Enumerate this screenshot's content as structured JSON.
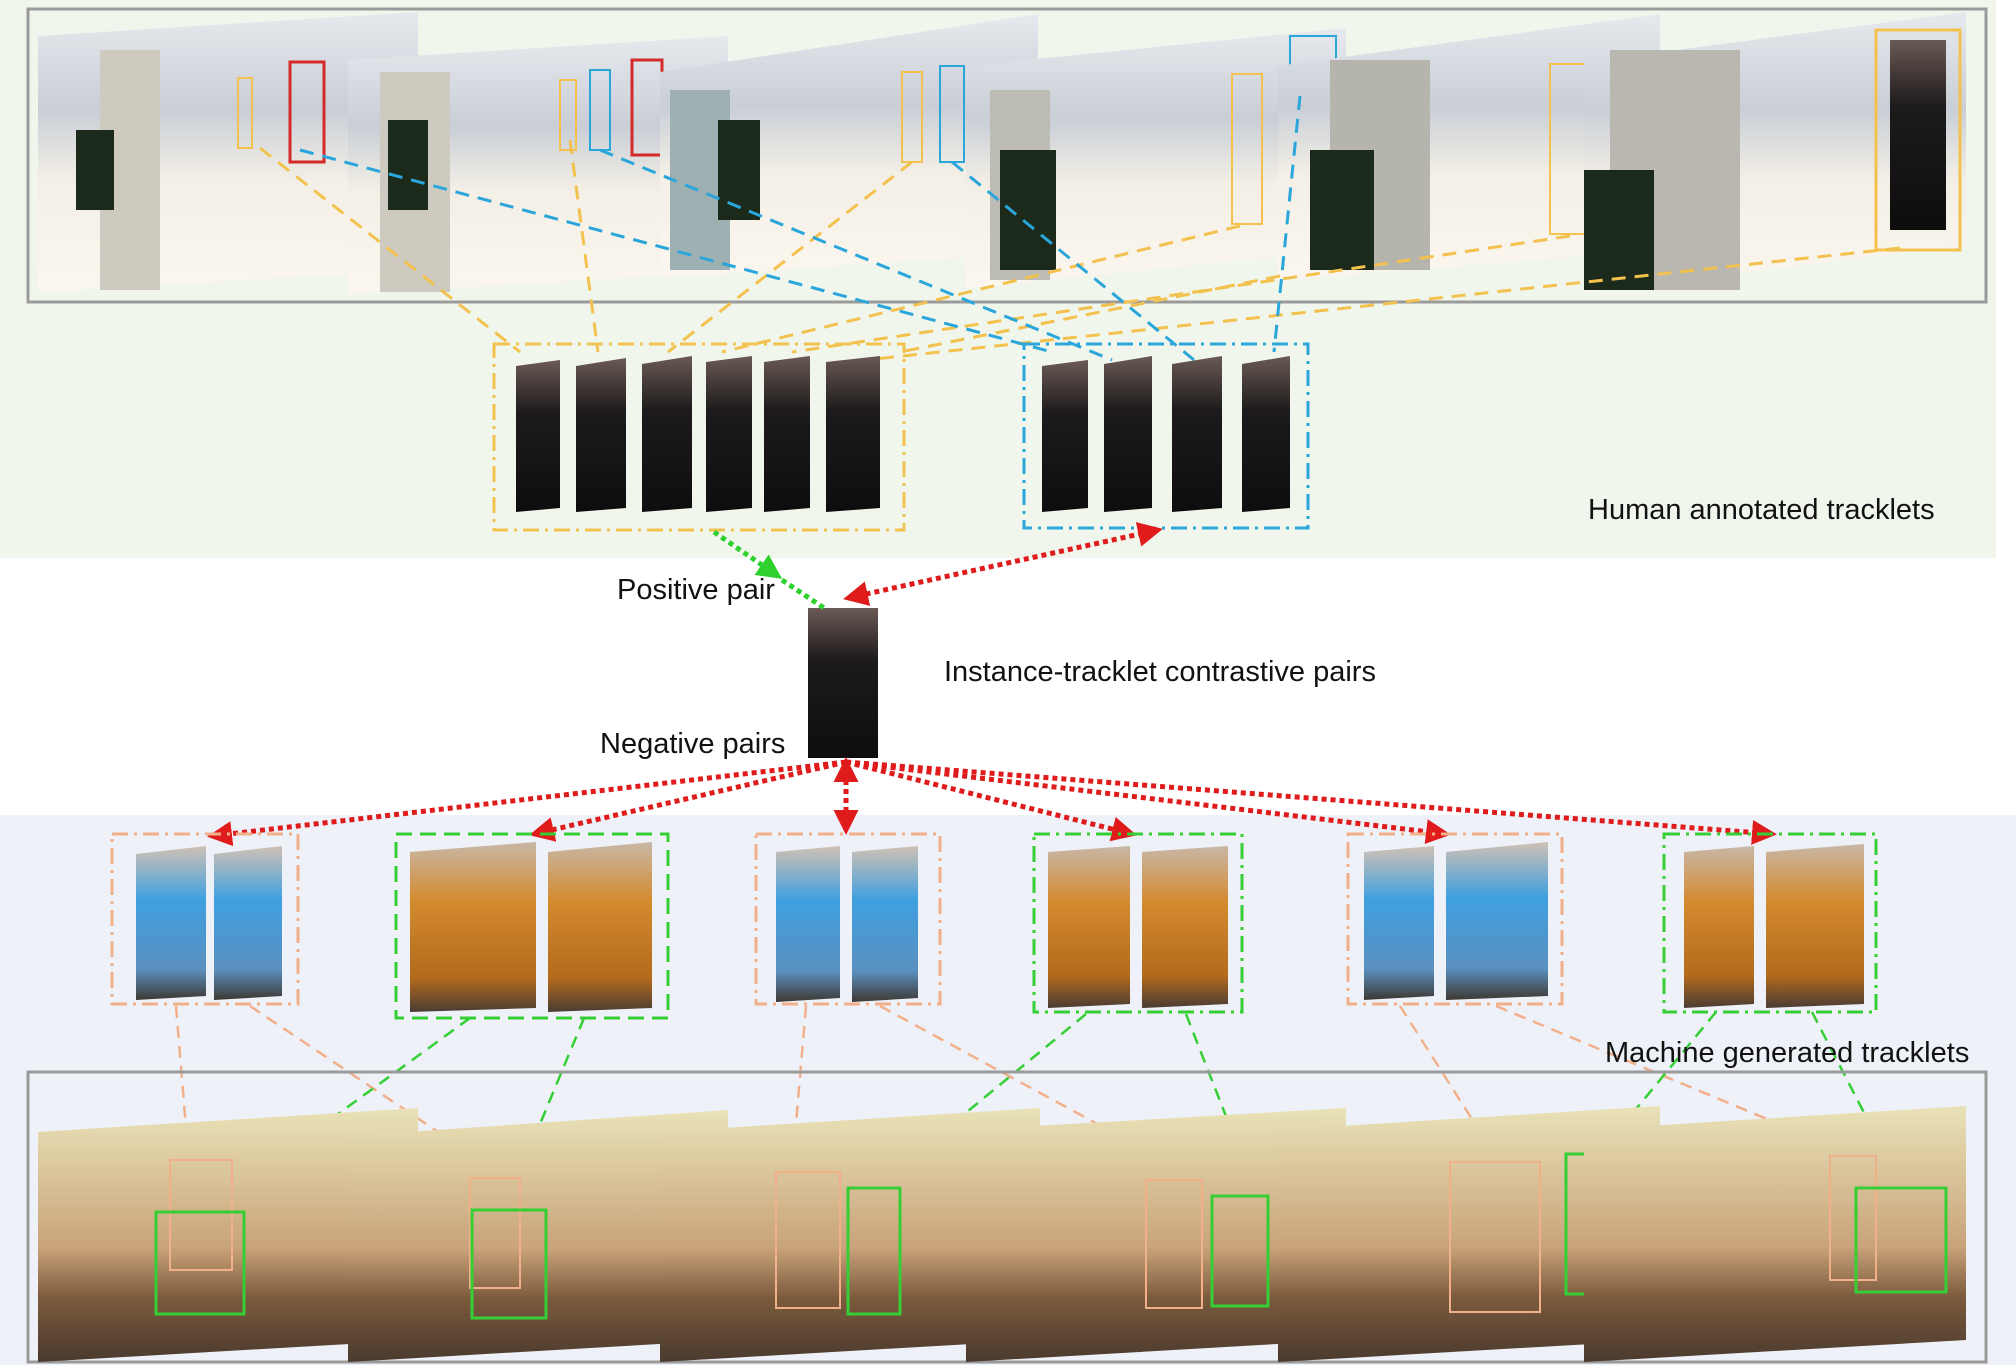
{
  "labels": {
    "human_annotated": "Human annotated tracklets",
    "positive_pair": "Positive pair",
    "contrastive_pairs": "Instance-tracklet contrastive pairs",
    "negative_pairs": "Negative pairs",
    "machine_generated": "Machine generated tracklets"
  },
  "colors": {
    "top_background": "#f1f6ed",
    "bottom_background": "#eef1f8",
    "tracklet_a": "#f3c14e",
    "tracklet_b": "#2aa6db",
    "tracklet_red": "#d42a2a",
    "positive_arrow": "#2fd12f",
    "negative_arrow": "#e01b1b",
    "machine_orange": "#f2b08a",
    "machine_green": "#35cf35",
    "frame_border": "#9a9a9a"
  },
  "human_tracklets": {
    "yellow_crops": 6,
    "blue_crops": 4
  },
  "machine_tracklets": {
    "groups": [
      "orange",
      "green",
      "orange",
      "green",
      "orange",
      "green"
    ]
  }
}
